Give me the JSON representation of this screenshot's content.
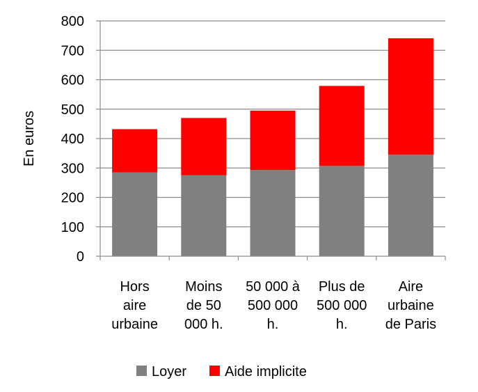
{
  "chart_data": {
    "type": "bar",
    "stacked": true,
    "categories": [
      [
        "Hors",
        "aire",
        "urbaine"
      ],
      [
        "Moins",
        "de 50",
        "000 h."
      ],
      [
        "50 000 à",
        "500 000",
        "h."
      ],
      [
        "Plus de",
        "500 000",
        "h."
      ],
      [
        "Aire",
        "urbaine",
        "de Paris"
      ]
    ],
    "series": [
      {
        "name": "Loyer",
        "color": "#808080",
        "values": [
          285,
          275,
          293,
          307,
          345
        ]
      },
      {
        "name": "Aide implicite",
        "color": "#ff0000",
        "values": [
          147,
          195,
          202,
          272,
          396
        ]
      }
    ],
    "ylabel": "En euros",
    "ylim": [
      0,
      800
    ],
    "yticks": [
      0,
      100,
      200,
      300,
      400,
      500,
      600,
      700,
      800
    ],
    "grid": true,
    "legend_position": "bottom"
  }
}
